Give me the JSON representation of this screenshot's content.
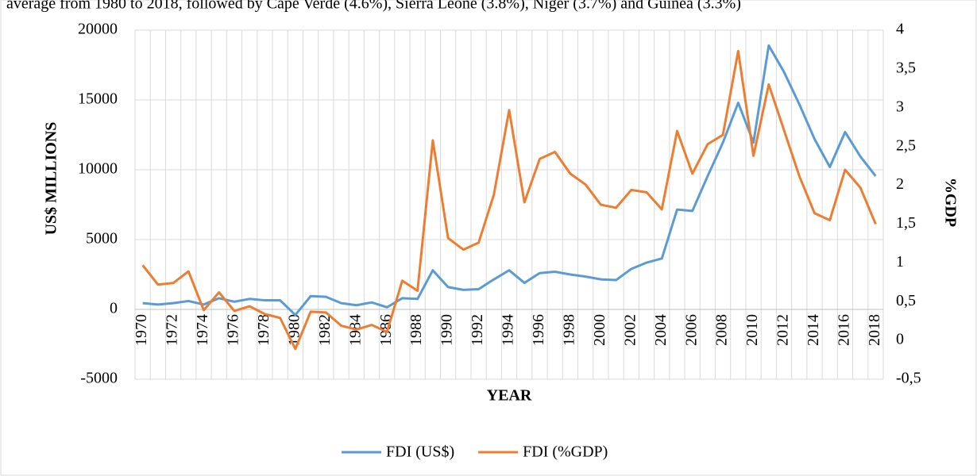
{
  "header_text": "average from 1980 to 2018, followed by Cape Verde (4.6%), Sierra Leone (3.8%), Niger (3.7%) and Guinea (3.3%)",
  "chart_data": {
    "type": "line",
    "x_label": "YEAR",
    "y_label": "US$ MILLIONS",
    "y2_label": "%GDP",
    "categories": [
      "1970",
      null,
      "1972",
      null,
      "1974",
      null,
      "1976",
      null,
      "1978",
      null,
      "1980",
      null,
      "1982",
      null,
      "1984",
      null,
      "1986",
      null,
      "1988",
      null,
      "1990",
      null,
      "1992",
      null,
      "1994",
      null,
      "1996",
      null,
      "1998",
      null,
      "2000",
      null,
      "2002",
      null,
      "2004",
      null,
      "2006",
      null,
      "2008",
      null,
      "2010",
      null,
      "2012",
      null,
      "2014",
      null,
      "2016",
      null,
      "2018"
    ],
    "series": [
      {
        "name": "FDI (US$)",
        "color": "#5b9bd5",
        "values": [
          450,
          350,
          450,
          600,
          350,
          800,
          550,
          750,
          650,
          650,
          -400,
          950,
          900,
          450,
          300,
          500,
          150,
          800,
          750,
          2800,
          1600,
          1400,
          1450,
          2150,
          2800,
          1900,
          2600,
          2700,
          2500,
          2350,
          2150,
          2100,
          2900,
          3350,
          3650,
          7150,
          7050,
          9550,
          11950,
          14800,
          11950,
          18900,
          17000,
          14700,
          12200,
          10200,
          12700,
          10950,
          9550
        ]
      },
      {
        "name": "FDI (%GDP)",
        "color": "#ed7d31",
        "axis": "y2",
        "values": [
          0.97,
          0.72,
          0.74,
          0.89,
          0.39,
          0.62,
          0.38,
          0.44,
          0.34,
          0.29,
          -0.11,
          0.37,
          0.36,
          0.19,
          0.14,
          0.2,
          0.11,
          0.77,
          0.64,
          2.58,
          1.32,
          1.17,
          1.26,
          1.88,
          2.97,
          1.78,
          2.34,
          2.43,
          2.15,
          2.01,
          1.75,
          1.71,
          1.94,
          1.91,
          1.69,
          2.7,
          2.15,
          2.53,
          2.65,
          3.73,
          2.38,
          3.3,
          2.71,
          2.12,
          1.64,
          1.55,
          2.2,
          1.97,
          1.5
        ]
      }
    ],
    "ylim": [
      -5000,
      20000
    ],
    "yticks": [
      -5000,
      0,
      5000,
      10000,
      15000,
      20000
    ],
    "y2lim": [
      -0.5,
      4
    ],
    "y2ticks": [
      {
        "value": -0.5,
        "label": "-0,5"
      },
      0,
      {
        "value": 0.5,
        "label": "0,5"
      },
      1,
      {
        "value": 1.5,
        "label": "1,5"
      },
      2,
      {
        "value": 2.5,
        "label": "2,5"
      },
      3,
      {
        "value": 3.5,
        "label": "3,5"
      },
      4
    ],
    "grid": true,
    "legend": "bottom"
  }
}
